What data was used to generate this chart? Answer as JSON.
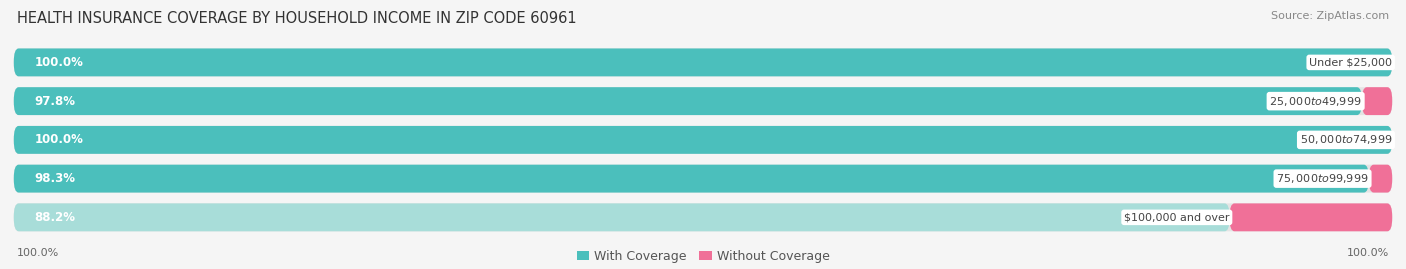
{
  "title": "HEALTH INSURANCE COVERAGE BY HOUSEHOLD INCOME IN ZIP CODE 60961",
  "source": "Source: ZipAtlas.com",
  "categories": [
    "Under $25,000",
    "$25,000 to $49,999",
    "$50,000 to $74,999",
    "$75,000 to $99,999",
    "$100,000 and over"
  ],
  "with_coverage": [
    100.0,
    97.8,
    100.0,
    98.3,
    88.2
  ],
  "without_coverage": [
    0.0,
    2.2,
    0.0,
    1.7,
    11.8
  ],
  "color_with": "#4BBFBC",
  "color_with_light": "#A8DDD9",
  "color_without": "#F07098",
  "color_bg_bar": "#E4E4E4",
  "background_color": "#F5F5F5",
  "legend_with": "With Coverage",
  "legend_without": "Without Coverage",
  "title_fontsize": 10.5,
  "source_fontsize": 8,
  "bar_label_fontsize": 8.5,
  "category_label_fontsize": 8
}
